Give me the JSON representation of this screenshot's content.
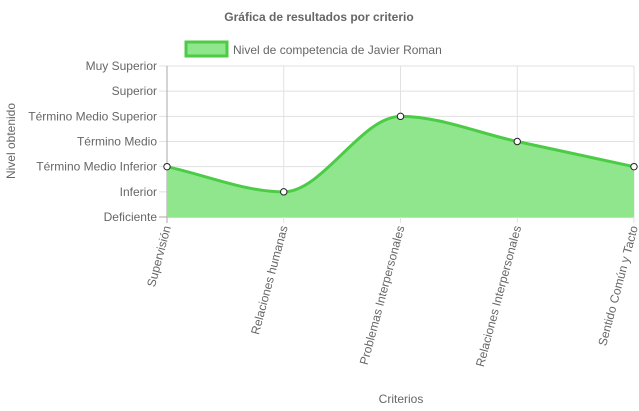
{
  "chart_data": {
    "type": "area",
    "title": "Gráfica de resultados por criterio",
    "xlabel": "Criterios",
    "ylabel": "Nivel obtenido",
    "categories": [
      "Supervisión",
      "Relaciones humanas",
      "Problemas Interpersonales",
      "Relaciones Interpersonales",
      "Sentido Común y Tacto"
    ],
    "y_levels": [
      "Deficiente",
      "Inferior",
      "Término Medio Inferior",
      "Término Medio",
      "Término Medio Superior",
      "Superior",
      "Muy Superior"
    ],
    "ylim": [
      0,
      6
    ],
    "grid": true,
    "legend_position": "top",
    "series": [
      {
        "name": "Nivel de competencia de Javier Roman",
        "values": [
          2,
          1,
          4,
          3,
          2
        ],
        "fill_color": "#90e68c",
        "line_color": "#4ccc46"
      }
    ]
  }
}
